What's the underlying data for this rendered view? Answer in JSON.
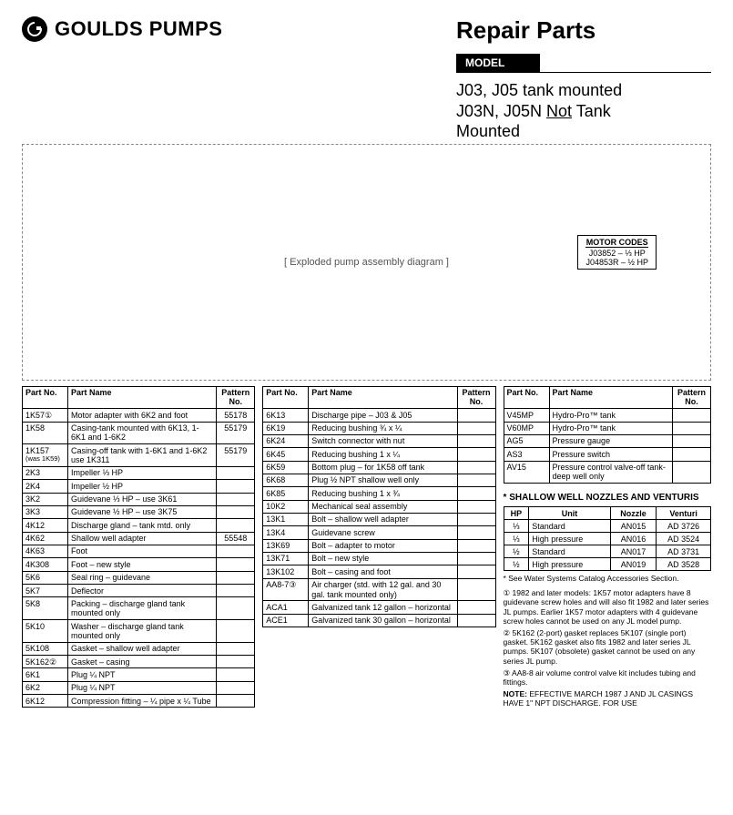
{
  "brand": "GOULDS PUMPS",
  "logo_letter": "G",
  "repair_title": "Repair Parts",
  "model_label": "MODEL",
  "model_line1": "J03, J05 tank mounted",
  "model_line2a": "J03N, J05N ",
  "model_line2_underline": "Not",
  "model_line2b": " Tank",
  "model_line3": "Mounted",
  "diagram_placeholder": "[ Exploded pump assembly diagram ]",
  "motor_codes": {
    "title": "MOTOR CODES",
    "line1": "J03852 – ⅓ HP",
    "line2": "J04853R – ½ HP"
  },
  "headers": {
    "part_no": "Part No.",
    "part_name": "Part Name",
    "pattern_no": "Pattern No."
  },
  "table1": [
    {
      "pn": "1K57①",
      "name": "Motor adapter with 6K2 and foot",
      "pat": "55178"
    },
    {
      "pn": "1K58",
      "name": "Casing-tank mounted with 6K13, 1-6K1 and 1-6K2",
      "pat": "55179"
    },
    {
      "pn": "1K157",
      "sub": "(was 1K59)",
      "name": "Casing-off tank with 1-6K1 and 1-6K2 use 1K311",
      "pat": "55179"
    },
    {
      "sep": true
    },
    {
      "pn": "2K3",
      "name": "Impeller ⅓ HP",
      "pat": ""
    },
    {
      "pn": "2K4",
      "name": "Impeller ½ HP",
      "pat": ""
    },
    {
      "sep": true
    },
    {
      "pn": "3K2",
      "name": "Guidevane ⅓ HP – use 3K61",
      "pat": ""
    },
    {
      "pn": "3K3",
      "name": "Guidevane ½ HP – use 3K75",
      "pat": ""
    },
    {
      "sep": true
    },
    {
      "pn": "4K12",
      "name": "Discharge gland – tank mtd. only",
      "pat": ""
    },
    {
      "pn": "4K62",
      "name": "Shallow well adapter",
      "pat": "55548"
    },
    {
      "pn": "4K63",
      "name": "Foot",
      "pat": ""
    },
    {
      "pn": "4K308",
      "name": "Foot – new style",
      "pat": ""
    },
    {
      "sep": true
    },
    {
      "pn": "5K6",
      "name": "Seal ring – guidevane",
      "pat": ""
    },
    {
      "pn": "5K7",
      "name": "Deflector",
      "pat": ""
    },
    {
      "pn": "5K8",
      "name": "Packing – discharge gland tank mounted only",
      "pat": ""
    },
    {
      "pn": "5K10",
      "name": "Washer – discharge gland tank mounted only",
      "pat": ""
    },
    {
      "pn": "5K108",
      "name": "Gasket – shallow well adapter",
      "pat": ""
    },
    {
      "pn": "5K162②",
      "name": "Gasket – casing",
      "pat": ""
    },
    {
      "sep": true
    },
    {
      "pn": "6K1",
      "name": "Plug ¼ NPT",
      "pat": ""
    },
    {
      "pn": "6K2",
      "name": "Plug ¼ NPT",
      "pat": ""
    },
    {
      "pn": "6K12",
      "name": "Compression fitting – ¼ pipe x ¼ Tube",
      "pat": ""
    }
  ],
  "table2": [
    {
      "pn": "6K13",
      "name": "Discharge pipe – J03 & J05",
      "pat": ""
    },
    {
      "pn": "6K19",
      "name": "Reducing bushing ¾ x ¼",
      "pat": ""
    },
    {
      "pn": "6K24",
      "name": "Switch connector with nut",
      "pat": ""
    },
    {
      "pn": "6K45",
      "name": "Reducing bushing 1 x ¼",
      "pat": ""
    },
    {
      "pn": "6K59",
      "name": "Bottom plug – for 1K58 off tank",
      "pat": ""
    },
    {
      "pn": "6K68",
      "name": "Plug ½ NPT shallow well only",
      "pat": ""
    },
    {
      "pn": "6K85",
      "name": "Reducing bushing 1 x ¾",
      "pat": ""
    },
    {
      "sep": true
    },
    {
      "pn": "10K2",
      "name": "Mechanical seal assembly",
      "pat": ""
    },
    {
      "sep": true
    },
    {
      "pn": "13K1",
      "name": "Bolt – shallow well adapter",
      "pat": ""
    },
    {
      "pn": "13K4",
      "name": "Guidevane screw",
      "pat": ""
    },
    {
      "pn": "13K69",
      "name": "Bolt – adapter to motor",
      "pat": ""
    },
    {
      "pn": "13K71",
      "name": "Bolt – new style",
      "pat": ""
    },
    {
      "pn": "13K102",
      "name": "Bolt – casing and foot",
      "pat": ""
    },
    {
      "sep": true
    },
    {
      "pn": "AA8-7③",
      "name": "Air charger (std. with 12 gal. and 30 gal. tank mounted only)",
      "pat": ""
    },
    {
      "sep": true
    },
    {
      "pn": "ACA1",
      "name": "Galvanized tank 12 gallon – horizontal",
      "pat": ""
    },
    {
      "pn": "ACE1",
      "name": "Galvanized tank 30 gallon – horizontal",
      "pat": ""
    }
  ],
  "table3": [
    {
      "pn": "V45MP",
      "name": "Hydro-Pro™ tank",
      "pat": ""
    },
    {
      "pn": "V60MP",
      "name": "Hydro-Pro™ tank",
      "pat": ""
    },
    {
      "sep": true
    },
    {
      "pn": "AG5",
      "name": "Pressure gauge",
      "pat": ""
    },
    {
      "pn": "AS3",
      "name": "Pressure switch",
      "pat": ""
    },
    {
      "sep": true
    },
    {
      "pn": "AV15",
      "name": "Pressure control valve-off tank-deep well only",
      "pat": ""
    }
  ],
  "nozzles": {
    "title": "* SHALLOW WELL NOZZLES AND VENTURIS",
    "headers": {
      "hp": "HP",
      "unit": "Unit",
      "nozzle": "Nozzle",
      "venturi": "Venturi"
    },
    "rows": [
      {
        "hp": "⅓",
        "unit": "Standard",
        "nozzle": "AN015",
        "venturi": "AD 3726"
      },
      {
        "hp": "⅓",
        "unit": "High pressure",
        "nozzle": "AN016",
        "venturi": "AD 3524"
      },
      {
        "hp": "½",
        "unit": "Standard",
        "nozzle": "AN017",
        "venturi": "AD 3731"
      },
      {
        "hp": "½",
        "unit": "High pressure",
        "nozzle": "AN019",
        "venturi": "AD 3528"
      }
    ],
    "footer": "* See Water Systems Catalog Accessories Section."
  },
  "footnotes": {
    "f1": "① 1982 and later models: 1K57 motor adapters have 8 guidevane screw holes and will also fit 1982 and later series JL pumps. Earlier 1K57 motor adapters with 4 guidevane screw holes cannot be used on any JL model pump.",
    "f2": "② 5K162 (2-port) gasket replaces 5K107 (single port) gasket. 5K162 gasket also fits 1982 and later series JL pumps. 5K107 (obsolete) gasket cannot be used on any series JL pump.",
    "f3": "③ AA8-8 air volume control valve kit includes tubing and fittings.",
    "note_label": "NOTE:",
    "note_text": "EFFECTIVE MARCH 1987 J AND JL CASINGS HAVE 1\" NPT DISCHARGE. FOR USE"
  }
}
